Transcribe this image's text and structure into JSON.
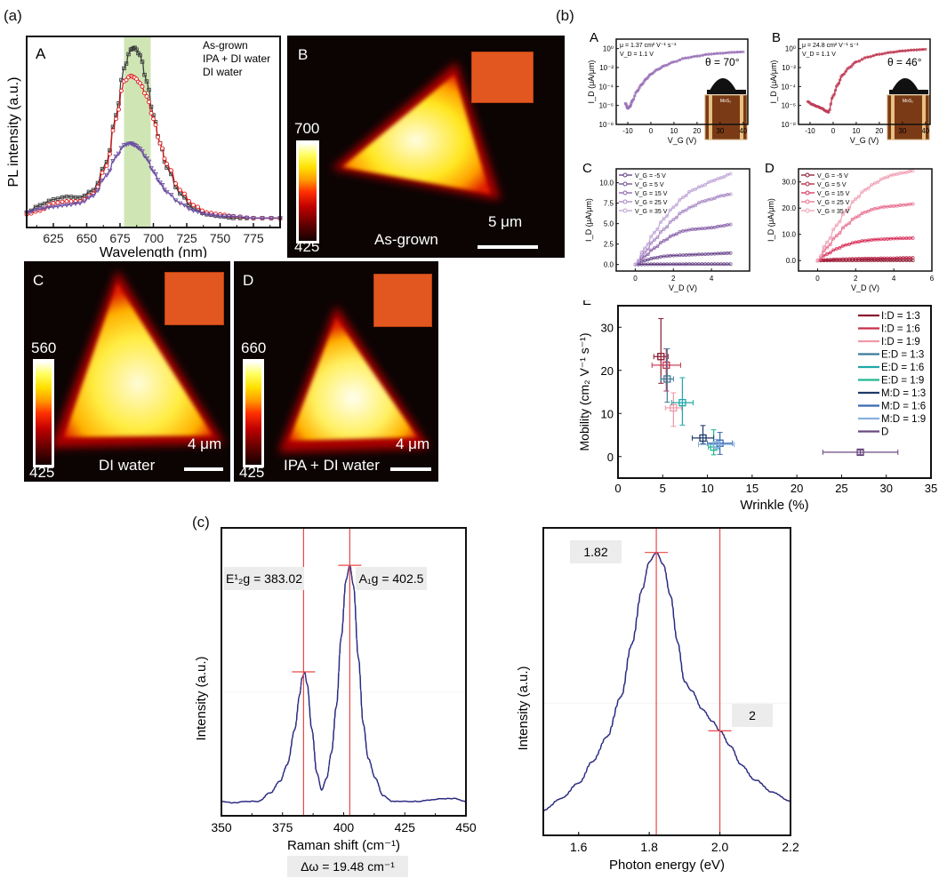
{
  "figure_labels": {
    "a": "(a)",
    "b": "(b)",
    "c": "(c)"
  },
  "panel_a": {
    "A": {
      "letter": "A",
      "legend": [
        "As-grown",
        "IPA + DI water",
        "DI water"
      ],
      "band": [
        678,
        698
      ]
    },
    "B": {
      "letter": "B",
      "caption": "As-grown",
      "cbar_max": "700",
      "cbar_min": "425",
      "scale": "5 μm"
    },
    "C": {
      "letter": "C",
      "caption": "DI water",
      "cbar_max": "560",
      "cbar_min": "425",
      "scale": "4 μm"
    },
    "D": {
      "letter": "D",
      "caption": "IPA + DI water",
      "cbar_max": "660",
      "cbar_min": "425",
      "scale": "4 μm"
    }
  },
  "panel_b": {
    "A": {
      "letter": "A",
      "mu": "μ = 1.37 cm² V⁻¹ s⁻¹",
      "vd": "V_D =  1.1 V",
      "angle": "θ = 70°",
      "inset_label": "MoS₂",
      "color": "#9a72b8"
    },
    "B": {
      "letter": "B",
      "mu": "μ = 24.8 cm² V⁻¹ s⁻¹",
      "vd": "V_D =  1.1 V",
      "angle": "θ = 46°",
      "inset_label": "MoS₂",
      "color": "#c03a55"
    },
    "C": {
      "letter": "C"
    },
    "D": {
      "letter": "D"
    },
    "E": {
      "letter": "E"
    }
  },
  "chart_data": [
    {
      "id": "a-A",
      "type": "line",
      "title": "",
      "xlabel": "Wavelength (nm)",
      "ylabel": "PL intensity (a.u.)",
      "xlim": [
        605,
        795
      ],
      "ylim": [
        0,
        1
      ],
      "xticks": [
        625,
        650,
        675,
        700,
        725,
        750,
        775
      ],
      "x": [
        605,
        615,
        625,
        635,
        645,
        655,
        665,
        672,
        678,
        683,
        686,
        690,
        695,
        700,
        705,
        710,
        720,
        730,
        740,
        750,
        760,
        775,
        795
      ],
      "series": [
        {
          "name": "As-grown",
          "color": "#3a3a3a",
          "values": [
            0.08,
            0.12,
            0.15,
            0.165,
            0.16,
            0.2,
            0.35,
            0.6,
            0.85,
            0.95,
            0.96,
            0.92,
            0.78,
            0.6,
            0.45,
            0.32,
            0.18,
            0.1,
            0.07,
            0.06,
            0.05,
            0.05,
            0.05
          ]
        },
        {
          "name": "IPA + DI water",
          "color": "#e01818",
          "values": [
            0.07,
            0.09,
            0.13,
            0.14,
            0.14,
            0.18,
            0.33,
            0.58,
            0.78,
            0.81,
            0.8,
            0.77,
            0.7,
            0.58,
            0.45,
            0.34,
            0.2,
            0.12,
            0.08,
            0.07,
            0.06,
            0.05,
            0.05
          ]
        },
        {
          "name": "DI water",
          "color": "#6a4ca0",
          "values": [
            0.08,
            0.1,
            0.11,
            0.12,
            0.13,
            0.17,
            0.28,
            0.38,
            0.44,
            0.45,
            0.44,
            0.42,
            0.37,
            0.3,
            0.24,
            0.19,
            0.13,
            0.09,
            0.07,
            0.06,
            0.06,
            0.05,
            0.05
          ]
        }
      ]
    },
    {
      "id": "b-A",
      "type": "line",
      "xlabel": "V_G (V)",
      "ylabel": "I_D (μA/μm)",
      "xlim": [
        -15,
        42
      ],
      "yscale": "log",
      "ylim": [
        -8,
        1
      ],
      "xticks": [
        -10,
        0,
        10,
        20,
        30,
        40
      ],
      "yticks": [
        "10⁰",
        "10⁻²",
        "10⁻⁴",
        "10⁻⁶",
        "10⁻⁸"
      ],
      "yticklog": [
        0,
        -2,
        -4,
        -6,
        -8
      ],
      "series": [
        {
          "name": "transfer",
          "color": "#9a72b8",
          "x": [
            -11,
            -10,
            -9,
            -8,
            -6,
            -4,
            -2,
            0,
            3,
            6,
            10,
            15,
            20,
            25,
            30,
            35,
            40
          ],
          "logy": [
            -5.8,
            -6.3,
            -6.1,
            -5.5,
            -4.5,
            -3.8,
            -3.2,
            -2.7,
            -2.2,
            -1.8,
            -1.4,
            -1.0,
            -0.8,
            -0.6,
            -0.5,
            -0.4,
            -0.35
          ]
        }
      ]
    },
    {
      "id": "b-B",
      "type": "line",
      "xlabel": "V_G (V)",
      "ylabel": "I_D (μA/μm)",
      "xlim": [
        -15,
        42
      ],
      "yscale": "log",
      "ylim": [
        -8,
        1
      ],
      "xticks": [
        -10,
        0,
        10,
        20,
        30,
        40
      ],
      "yticks": [
        "10⁰",
        "10⁻²",
        "10⁻⁴",
        "10⁻⁶",
        "10⁻⁸"
      ],
      "yticklog": [
        0,
        -2,
        -4,
        -6,
        -8
      ],
      "series": [
        {
          "name": "transfer",
          "color": "#c03a55",
          "x": [
            -11,
            -9,
            -7,
            -5,
            -3,
            -2,
            0,
            2,
            4,
            7,
            10,
            15,
            20,
            25,
            30,
            35,
            40
          ],
          "logy": [
            -5.6,
            -5.9,
            -6.1,
            -6.3,
            -6.6,
            -6.7,
            -5.0,
            -3.8,
            -2.8,
            -2.0,
            -1.4,
            -0.9,
            -0.6,
            -0.4,
            -0.25,
            -0.15,
            -0.08
          ]
        }
      ]
    },
    {
      "id": "b-C",
      "type": "line",
      "xlabel": "V_D (V)",
      "ylabel": "I_D (μA/μm)",
      "xlim": [
        -1,
        6
      ],
      "ylim": [
        -0.8,
        11.7
      ],
      "xticks": [
        0,
        2,
        4
      ],
      "yticks": [
        0.0,
        2.5,
        5.0,
        7.5,
        10.0
      ],
      "x": [
        0,
        0.5,
        1,
        1.5,
        2,
        2.5,
        3,
        3.5,
        4,
        4.5,
        5
      ],
      "series": [
        {
          "name": "V_G = -5 V",
          "color": "#5e3a7e",
          "values": [
            0,
            0.02,
            0.03,
            0.03,
            0.04,
            0.04,
            0.05,
            0.05,
            0.05,
            0.05,
            0.05
          ]
        },
        {
          "name": "V_G =  5 V",
          "color": "#6e4a8e",
          "values": [
            0,
            0.5,
            0.8,
            1.0,
            1.1,
            1.15,
            1.2,
            1.25,
            1.3,
            1.35,
            1.4
          ]
        },
        {
          "name": "V_G = 15 V",
          "color": "#8a62aa",
          "values": [
            0,
            1.0,
            2.0,
            2.9,
            3.6,
            4.1,
            4.3,
            4.4,
            4.5,
            4.7,
            4.9
          ]
        },
        {
          "name": "V_G = 25 V",
          "color": "#a888c4",
          "values": [
            0,
            1.5,
            3.0,
            4.3,
            5.5,
            6.5,
            7.1,
            7.7,
            8.0,
            8.4,
            8.6
          ]
        },
        {
          "name": "V_G = 35 V",
          "color": "#c0a4d6",
          "values": [
            0,
            2.0,
            3.9,
            5.6,
            7.0,
            8.2,
            9.1,
            9.6,
            10.2,
            10.6,
            11.1
          ]
        }
      ]
    },
    {
      "id": "b-D",
      "type": "line",
      "xlabel": "V_D (V)",
      "ylabel": "I_D (μA/μm)",
      "xlim": [
        -1,
        6
      ],
      "ylim": [
        -4,
        35
      ],
      "xticks": [
        0,
        2,
        4,
        6
      ],
      "yticks": [
        0.0,
        10.0,
        20.0,
        30.0
      ],
      "x": [
        0,
        0.5,
        1,
        1.5,
        2,
        2.5,
        3,
        3.5,
        4,
        4.5,
        5
      ],
      "series": [
        {
          "name": "V_G = -5 V",
          "color": "#8a1a30",
          "values": [
            0,
            0.02,
            0.03,
            0.03,
            0.04,
            0.04,
            0.05,
            0.05,
            0.05,
            0.05,
            0.05
          ]
        },
        {
          "name": "V_G =  5 V",
          "color": "#b02040",
          "values": [
            0,
            0.3,
            0.5,
            0.6,
            0.7,
            0.8,
            0.8,
            0.9,
            0.9,
            1.0,
            1.0
          ]
        },
        {
          "name": "V_G = 15 V",
          "color": "#d8305a",
          "values": [
            0,
            2.5,
            4.5,
            6.0,
            7.0,
            7.6,
            8.0,
            8.2,
            8.4,
            8.5,
            8.6
          ]
        },
        {
          "name": "V_G = 25 V",
          "color": "#e87090",
          "values": [
            0,
            5,
            9.5,
            13.5,
            16.5,
            18.5,
            19.8,
            20.5,
            20.8,
            21.2,
            21.6
          ]
        },
        {
          "name": "V_G = 35 V",
          "color": "#f0a0b4",
          "values": [
            0,
            7,
            13.5,
            19,
            23.5,
            27,
            29.5,
            31.5,
            32.8,
            33.5,
            34.2
          ]
        }
      ]
    },
    {
      "id": "b-E",
      "type": "scatter",
      "xlabel": "Wrinkle (%)",
      "ylabel": "Mobility (cm₂ V⁻¹ s⁻¹)",
      "xlim": [
        0,
        35
      ],
      "ylim": [
        -5,
        35
      ],
      "xticks": [
        0,
        5,
        10,
        15,
        20,
        25,
        30,
        35
      ],
      "yticks": [
        0,
        10,
        20,
        30
      ],
      "legend_position": "top-right",
      "series": [
        {
          "name": "I:D = 1:3",
          "color": "#8a1a30",
          "x": 4.8,
          "y": 23.2,
          "xerr": 0.8,
          "yerr_lo": 6.2,
          "yerr_hi": 8.8
        },
        {
          "name": "I:D = 1:6",
          "color": "#c8304a",
          "x": 5.4,
          "y": 21.2,
          "xerr": 1.6,
          "yerr_lo": 6.0,
          "yerr_hi": 3.8
        },
        {
          "name": "I:D = 1:9",
          "color": "#f098a8",
          "x": 6.2,
          "y": 11.3,
          "xerr": 0.9,
          "yerr_lo": 4.3,
          "yerr_hi": 3.5
        },
        {
          "name": "E:D = 1:3",
          "color": "#3a7a98",
          "x": 5.5,
          "y": 18.0,
          "xerr": 0.7,
          "yerr_lo": 5.4,
          "yerr_hi": 7.0
        },
        {
          "name": "E:D = 1:6",
          "color": "#20a8a8",
          "x": 7.2,
          "y": 12.5,
          "xerr": 1.2,
          "yerr_lo": 5.2,
          "yerr_hi": 5.8
        },
        {
          "name": "E:D = 1:9",
          "color": "#20b890",
          "x": 10.7,
          "y": 2.2,
          "xerr": 0.6,
          "yerr_lo": 1.8,
          "yerr_hi": 4.0
        },
        {
          "name": "M:D = 1:3",
          "color": "#20386a",
          "x": 9.5,
          "y": 4.3,
          "xerr": 1.2,
          "yerr_lo": 1.3,
          "yerr_hi": 2.9
        },
        {
          "name": "M:D = 1:6",
          "color": "#3a68b0",
          "x": 11.4,
          "y": 3.1,
          "xerr": 1.4,
          "yerr_lo": 2.6,
          "yerr_hi": 2.5
        },
        {
          "name": "M:D = 1:9",
          "color": "#88b0e0",
          "x": 11.0,
          "y": 2.8,
          "xerr": 2.0,
          "yerr_lo": 1.0,
          "yerr_hi": 1.2
        },
        {
          "name": "D",
          "color": "#6a4a80",
          "x": 27.1,
          "y": 1.0,
          "xerr": 4.2,
          "yerr_lo": 0.5,
          "yerr_hi": 0.5
        }
      ]
    },
    {
      "id": "c-raman",
      "type": "line",
      "xlabel": "Raman shift (cm⁻¹)",
      "ylabel": "Intensity (a.u.)",
      "xlim": [
        350,
        450
      ],
      "ylim": [
        0,
        1
      ],
      "xticks": [
        350,
        375,
        400,
        425,
        450
      ],
      "color": "#2a2a80",
      "x": [
        350,
        355,
        360,
        365,
        370,
        374,
        377,
        380,
        382,
        383,
        384,
        385,
        387,
        389,
        391,
        393,
        395,
        397,
        399,
        401,
        402.5,
        404,
        406,
        408,
        410,
        413,
        416,
        420,
        425,
        430,
        435,
        440,
        445,
        450
      ],
      "values": [
        0.05,
        0.045,
        0.05,
        0.05,
        0.08,
        0.12,
        0.18,
        0.3,
        0.42,
        0.48,
        0.5,
        0.46,
        0.3,
        0.15,
        0.09,
        0.13,
        0.22,
        0.38,
        0.62,
        0.82,
        0.87,
        0.8,
        0.55,
        0.32,
        0.2,
        0.13,
        0.07,
        0.05,
        0.05,
        0.05,
        0.055,
        0.06,
        0.06,
        0.05
      ],
      "markers": [
        {
          "label": "E¹₂g = 383.02",
          "x": 383.6
        },
        {
          "label": "A₁g = 402.5",
          "x": 402.5
        }
      ],
      "annotation": "Δω = 19.48 cm⁻¹"
    },
    {
      "id": "c-pl",
      "type": "line",
      "xlabel": "Photon energy (eV)",
      "ylabel": "Intensity (a.u.)",
      "xlim": [
        1.5,
        2.2
      ],
      "ylim": [
        0,
        1
      ],
      "xticks": [
        1.6,
        1.8,
        2.0,
        2.2
      ],
      "color": "#2a2a80",
      "x": [
        1.5,
        1.55,
        1.6,
        1.64,
        1.68,
        1.72,
        1.75,
        1.78,
        1.8,
        1.82,
        1.84,
        1.86,
        1.88,
        1.9,
        1.92,
        1.95,
        1.98,
        2.0,
        2.03,
        2.06,
        2.1,
        2.15,
        2.2
      ],
      "values": [
        0.08,
        0.12,
        0.17,
        0.24,
        0.32,
        0.45,
        0.62,
        0.8,
        0.89,
        0.92,
        0.88,
        0.78,
        0.63,
        0.5,
        0.47,
        0.41,
        0.37,
        0.34,
        0.29,
        0.23,
        0.18,
        0.14,
        0.11
      ],
      "markers": [
        {
          "label": "1.82",
          "x": 1.82
        },
        {
          "label": "2",
          "x": 2.0
        }
      ]
    }
  ]
}
